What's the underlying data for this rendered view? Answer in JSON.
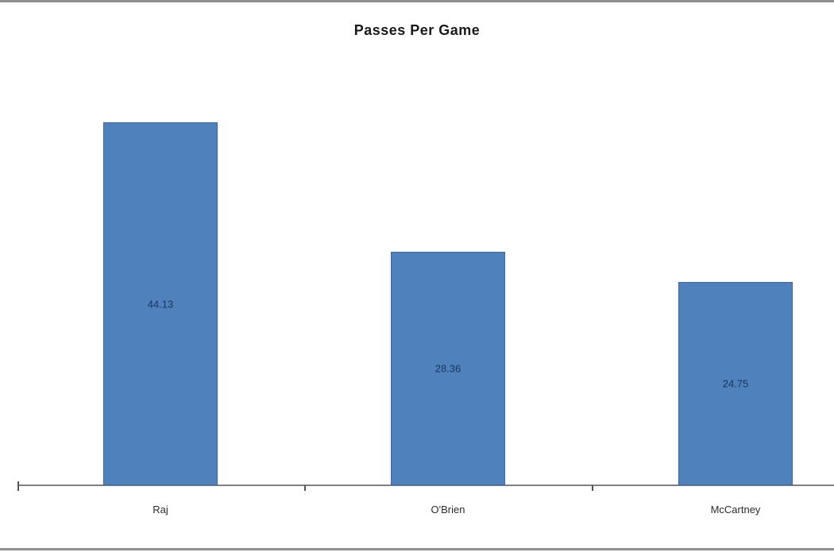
{
  "chart_data": {
    "type": "bar",
    "title": "Passes Per Game",
    "categories": [
      "Raj",
      "O'Brien",
      "McCartney"
    ],
    "values": [
      44.13,
      28.36,
      24.75
    ],
    "data_labels": [
      "44.13",
      "28.36",
      "24.75"
    ],
    "xlabel": "",
    "ylabel": "",
    "ylim": [
      0,
      45
    ],
    "grid": false,
    "legend": "none",
    "data_label_position": "center",
    "bar_color": "#4F81BD",
    "bar_border_color": "#3A689F",
    "axis_color": "#808080",
    "value_label_color": "#17375D",
    "category_label_color": "#2b2b2b",
    "title_color": "#1a1a1a"
  }
}
